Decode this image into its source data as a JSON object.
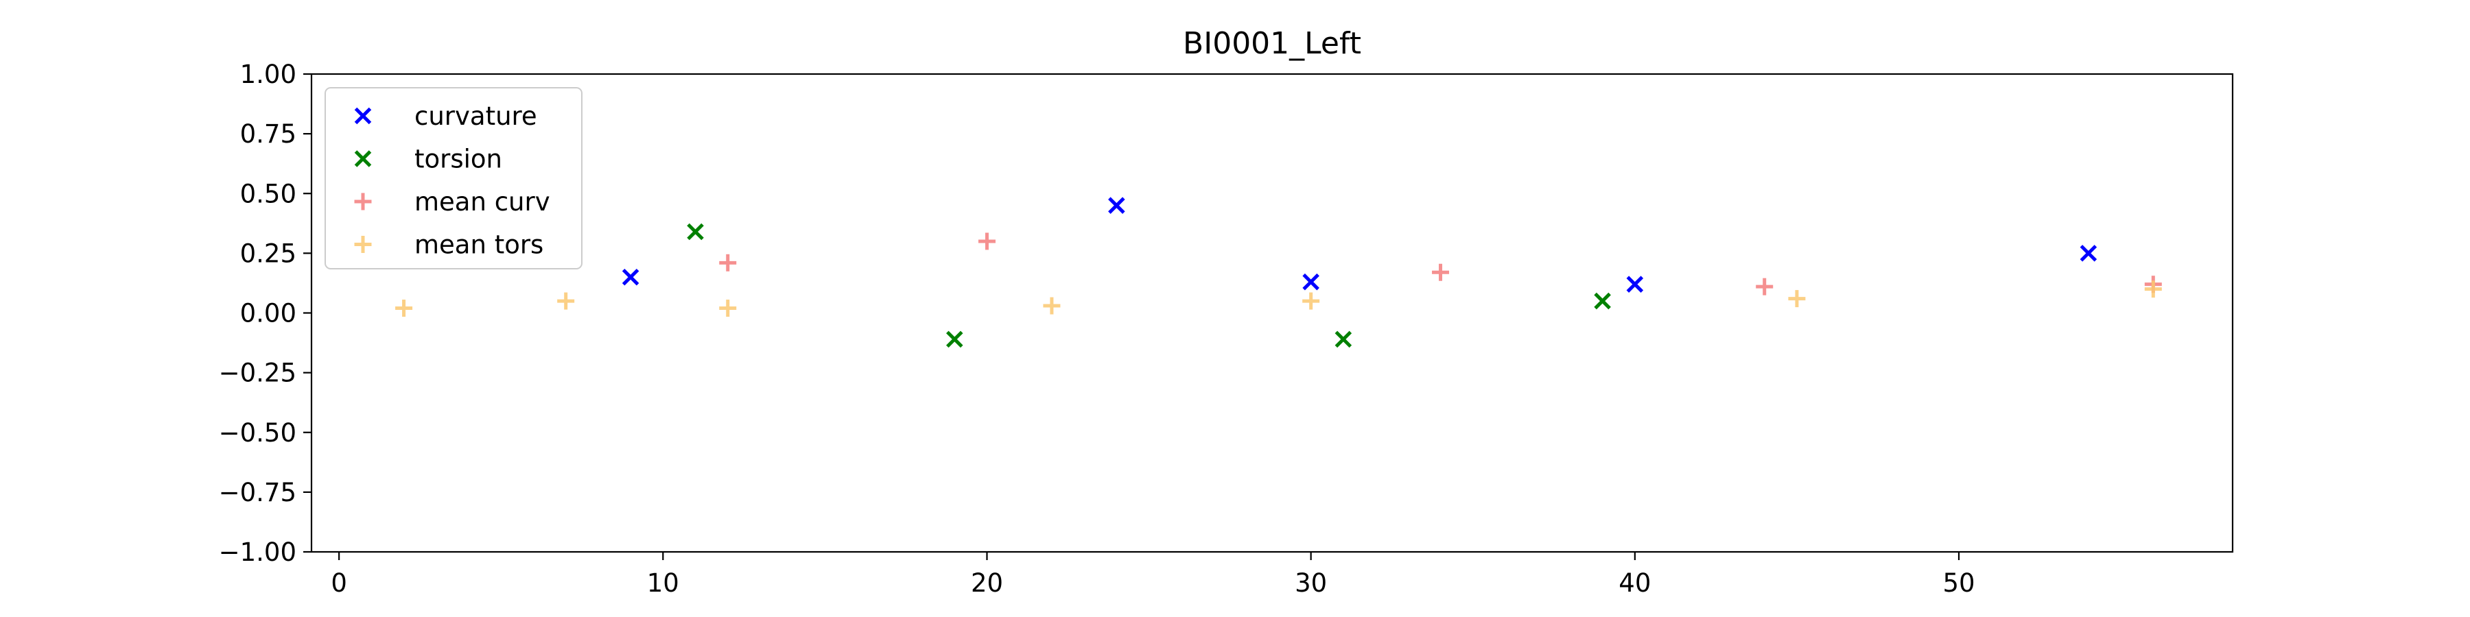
{
  "chart_data": {
    "type": "scatter",
    "title": "BI0001_Left",
    "xlabel": "",
    "ylabel": "",
    "xlim": [
      -0.85,
      58.45
    ],
    "ylim": [
      -1.0,
      1.0
    ],
    "x_ticks": [
      0,
      10,
      20,
      30,
      40,
      50
    ],
    "y_ticks": [
      1.0,
      0.75,
      0.5,
      0.25,
      0.0,
      -0.25,
      -0.5,
      -0.75,
      -1.0
    ],
    "y_tick_labels": [
      "1.00",
      "0.75",
      "0.50",
      "0.25",
      "0.00",
      "−0.25",
      "−0.50",
      "−0.75",
      "−1.00"
    ],
    "x_tick_labels": [
      "0",
      "10",
      "20",
      "30",
      "40",
      "50"
    ],
    "grid": false,
    "legend_position": "upper-left",
    "series": [
      {
        "name": "curvature",
        "marker": "x",
        "color": "#0000ff",
        "points": [
          [
            9,
            0.15
          ],
          [
            24,
            0.45
          ],
          [
            30,
            0.13
          ],
          [
            40,
            0.12
          ],
          [
            54,
            0.25
          ]
        ]
      },
      {
        "name": "torsion",
        "marker": "x",
        "color": "#008000",
        "points": [
          [
            11,
            0.34
          ],
          [
            19,
            -0.11
          ],
          [
            31,
            -0.11
          ],
          [
            39,
            0.05
          ]
        ]
      },
      {
        "name": "mean curv",
        "marker": "+",
        "color": "#f47d7d",
        "points": [
          [
            12,
            0.21
          ],
          [
            20,
            0.3
          ],
          [
            34,
            0.17
          ],
          [
            44,
            0.11
          ],
          [
            56,
            0.12
          ]
        ]
      },
      {
        "name": "mean tors",
        "marker": "+",
        "color": "#fbc872",
        "points": [
          [
            2,
            0.02
          ],
          [
            7,
            0.05
          ],
          [
            12,
            0.02
          ],
          [
            22,
            0.03
          ],
          [
            30,
            0.05
          ],
          [
            45,
            0.06
          ],
          [
            56,
            0.1
          ]
        ]
      }
    ]
  }
}
